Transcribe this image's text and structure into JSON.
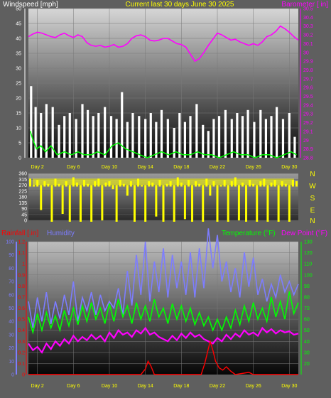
{
  "panel_top": {
    "title_left": "Windspeed [mph]",
    "title_center": "Current last 30 days June 30 2025",
    "title_right": "Barometer [ in]",
    "colors": {
      "title_left": "#ffffff",
      "title_center": "#ffff00",
      "title_right": "#ff00ff",
      "gust": "#ffffff",
      "wind": "#00ff00",
      "baro": "#ff00ff"
    }
  },
  "panel_mid": {
    "compass_labels": [
      "N",
      "W",
      "S",
      "E",
      "N"
    ],
    "color": "#ffff00"
  },
  "panel_bottom": {
    "title_rain": "Rainfall [.in]",
    "title_hum": "Humidity",
    "title_temp": "Temperature (°F)",
    "title_dew": "Dew Point (°F)",
    "colors": {
      "rain": "#ff0000",
      "hum": "#7d7dff",
      "temp": "#00ff00",
      "dew": "#ff00ff"
    }
  },
  "chart_data": [
    {
      "type": "line",
      "y_axis_left": {
        "label": "Windspeed [mph]",
        "range": [
          0,
          50
        ],
        "ticks": [
          "50",
          "45",
          "40",
          "35",
          "30",
          "25",
          "20",
          "15",
          "10",
          "5",
          "0"
        ]
      },
      "y_axis_right": {
        "label": "Barometer [ in]",
        "range": [
          28.8,
          30.5
        ],
        "ticks": [
          "30.5",
          "30.4",
          "30.3",
          "30.2",
          "30.1",
          "30",
          "29.9",
          "29.8",
          "29.7",
          "29.6",
          "29.5",
          "29.4",
          "29.3",
          "29.2",
          "29.1",
          "29",
          "28.9",
          "28.8"
        ]
      },
      "x_axis": {
        "range": [
          1,
          31
        ],
        "ticks": [
          "Day 2",
          "Day 6",
          "Day 10",
          "Day 14",
          "Day 18",
          "Day 22",
          "Day 26",
          "Day 30"
        ],
        "tick_days": [
          2,
          6,
          10,
          14,
          18,
          22,
          26,
          30
        ]
      },
      "series": [
        {
          "name": "gust",
          "axis": "left",
          "color": "#ffffff",
          "day": [
            1.3,
            1.8,
            2.4,
            3.0,
            3.7,
            4.4,
            5.0,
            5.6,
            6.3,
            7.0,
            7.6,
            8.2,
            8.8,
            9.5,
            10.2,
            10.8,
            11.4,
            12.0,
            12.6,
            13.3,
            14.0,
            14.6,
            15.2,
            15.8,
            16.5,
            17.2,
            17.8,
            18.4,
            19.0,
            19.7,
            20.4,
            21.0,
            21.6,
            22.2,
            22.9,
            23.6,
            24.2,
            24.8,
            25.4,
            26.1,
            26.8,
            27.4,
            28.0,
            28.6,
            29.3,
            30.0,
            30.6
          ],
          "mph": [
            24,
            17,
            15,
            18,
            17,
            11,
            14,
            15,
            13,
            18,
            16,
            14,
            15,
            17,
            14,
            13,
            22,
            12,
            15,
            14,
            13,
            15,
            12,
            16,
            13,
            10,
            15,
            12,
            14,
            18,
            11,
            9,
            13,
            14,
            16,
            13,
            15,
            14,
            16,
            12,
            16,
            13,
            14,
            17,
            13,
            15,
            7
          ]
        },
        {
          "name": "wind",
          "axis": "left",
          "color": "#00ff00",
          "day": [
            1.2,
            1.5,
            1.9,
            2.4,
            2.9,
            3.5,
            4.2,
            5.0,
            5.8,
            6.5,
            7.2,
            8.0,
            8.7,
            9.5,
            10.3,
            11.0,
            11.8,
            12.6,
            13.4,
            14.2,
            15.0,
            15.8,
            16.6,
            17.4,
            18.2,
            19.0,
            19.8,
            20.6,
            21.4,
            22.2,
            23.0,
            23.8,
            24.6,
            25.4,
            26.2,
            27.0,
            27.8,
            28.6,
            29.4,
            30.2,
            30.8
          ],
          "mph": [
            9,
            6,
            3,
            4,
            2,
            4,
            1,
            2,
            1,
            2,
            1,
            1,
            2,
            1,
            4,
            5,
            3,
            2,
            1,
            0,
            1,
            2,
            1,
            2,
            1,
            1,
            2,
            1,
            1,
            0,
            1,
            2,
            1,
            1,
            0,
            1,
            1,
            0,
            1,
            2,
            1
          ]
        },
        {
          "name": "barometer",
          "axis": "right",
          "color": "#ff00ff",
          "day": [
            1,
            1.5,
            2,
            2.5,
            3,
            3.5,
            4,
            4.5,
            5,
            5.5,
            6,
            6.5,
            7,
            7.5,
            8,
            8.5,
            9,
            9.5,
            10,
            10.5,
            11,
            11.5,
            12,
            12.5,
            13,
            13.5,
            14,
            14.5,
            15,
            15.5,
            16,
            16.5,
            17,
            17.5,
            18,
            18.5,
            19,
            19.5,
            20,
            20.5,
            21,
            21.5,
            22,
            22.5,
            23,
            23.5,
            24,
            24.5,
            25,
            25.5,
            26,
            26.5,
            27,
            27.5,
            28,
            28.5,
            29,
            29.5,
            30,
            30.5,
            31
          ],
          "inHg": [
            30.18,
            30.21,
            30.23,
            30.22,
            30.2,
            30.18,
            30.17,
            30.2,
            30.22,
            30.19,
            30.17,
            30.2,
            30.18,
            30.11,
            30.08,
            30.07,
            30.08,
            30.06,
            30.07,
            30.09,
            30.06,
            30.07,
            30.1,
            30.16,
            30.19,
            30.2,
            30.18,
            30.14,
            30.13,
            30.14,
            30.16,
            30.16,
            30.13,
            30.1,
            30.09,
            30.06,
            29.98,
            29.9,
            29.93,
            30.0,
            30.08,
            30.15,
            30.22,
            30.2,
            30.17,
            30.14,
            30.15,
            30.12,
            30.1,
            30.08,
            30.1,
            30.08,
            30.12,
            30.18,
            30.2,
            30.24,
            30.3,
            30.27,
            30.23,
            30.18,
            30.14
          ]
        }
      ]
    },
    {
      "type": "scatter",
      "y_axis_left": {
        "label": "Wind direction (degrees)",
        "range": [
          0,
          360
        ],
        "ticks": [
          "360",
          "315",
          "270",
          "225",
          "180",
          "135",
          "90",
          "45",
          "0"
        ]
      },
      "y_axis_right": {
        "labels": [
          "N",
          "W",
          "S",
          "E",
          "N"
        ]
      },
      "x_axis": {
        "range": [
          1,
          31
        ]
      },
      "series": [
        {
          "name": "wind direction",
          "color": "#ffff00",
          "day": [
            1.2,
            1.6,
            2.0,
            2.4,
            2.8,
            3.2,
            3.6,
            4.0,
            4.4,
            4.8,
            5.2,
            5.6,
            6.0,
            6.4,
            6.8,
            7.2,
            7.6,
            8.0,
            8.4,
            8.8,
            9.2,
            9.6,
            10.0,
            10.4,
            10.8,
            11.2,
            11.6,
            12.0,
            12.4,
            12.8,
            13.2,
            13.6,
            14.0,
            14.4,
            14.8,
            15.2,
            15.6,
            16.0,
            16.4,
            16.8,
            17.2,
            17.6,
            18.0,
            18.4,
            18.8,
            19.2,
            19.6,
            20.0,
            20.4,
            20.8,
            21.2,
            21.6,
            22.0,
            22.4,
            22.8,
            23.2,
            23.6,
            24.0,
            24.4,
            24.8,
            25.2,
            25.6,
            26.0,
            26.4,
            26.8,
            27.2,
            27.6,
            28.0,
            28.4,
            28.8,
            29.2,
            29.6,
            30.0,
            30.4,
            30.8
          ],
          "deg": [
            320,
            270,
            310,
            90,
            300,
            280,
            0,
            320,
            280,
            60,
            300,
            0,
            330,
            290,
            0,
            310,
            280,
            0,
            300,
            320,
            10,
            290,
            300,
            250,
            0,
            310,
            280,
            200,
            300,
            0,
            320,
            270,
            0,
            300,
            290,
            40,
            310,
            0,
            280,
            300,
            0,
            330,
            290,
            20,
            310,
            0,
            300,
            280,
            0,
            320,
            200,
            300,
            0,
            270,
            310,
            0,
            300,
            330,
            10,
            290,
            0,
            310,
            280,
            0,
            300,
            320,
            0,
            290,
            310,
            0,
            300,
            280,
            0,
            310,
            300
          ]
        }
      ]
    },
    {
      "type": "line",
      "y_axis_left_outer": {
        "label": "Humidity",
        "range": [
          0,
          100
        ],
        "ticks": [
          "100",
          "90",
          "80",
          "70",
          "60",
          "50",
          "40",
          "30",
          "20",
          "10",
          "0"
        ]
      },
      "y_axis_left_inner": {
        "label": "Rainfall [.in]",
        "range": [
          0,
          1.2
        ],
        "ticks": [
          "1.2",
          "1.1",
          "1",
          "0.9",
          "0.8",
          "0.7",
          "0.6",
          "0.5",
          "0.4",
          "0.3",
          "0.2",
          "0.1",
          "0"
        ]
      },
      "y_axis_right": {
        "label": "Temperature (°F)",
        "range": [
          10,
          130
        ],
        "ticks": [
          "130",
          "120",
          "110",
          "100",
          "90",
          "80",
          "70",
          "60",
          "50",
          "40",
          "30",
          "20"
        ]
      },
      "x_axis": {
        "range": [
          1,
          31
        ],
        "ticks": [
          "Day 2",
          "Day 6",
          "Day 10",
          "Day 14",
          "Day 18",
          "Day 22",
          "Day 26",
          "Day 30"
        ],
        "tick_days": [
          2,
          6,
          10,
          14,
          18,
          22,
          26,
          30
        ]
      },
      "series": [
        {
          "name": "Humidity",
          "axis": "left_outer",
          "color": "#7d7dff",
          "day": [
            1,
            1.5,
            2,
            2.5,
            3,
            3.5,
            4,
            4.5,
            5,
            5.5,
            6,
            6.5,
            7,
            7.5,
            8,
            8.5,
            9,
            9.5,
            10,
            10.5,
            11,
            11.5,
            12,
            12.5,
            13,
            13.5,
            14,
            14.5,
            15,
            15.5,
            16,
            16.5,
            17,
            17.5,
            18,
            18.5,
            19,
            19.5,
            20,
            20.5,
            21,
            21.5,
            22,
            22.5,
            23,
            23.5,
            24,
            24.5,
            25,
            25.5,
            26,
            26.5,
            27,
            27.5,
            28,
            28.5,
            29,
            29.5,
            30,
            30.5,
            31
          ],
          "pct": [
            55,
            35,
            58,
            40,
            62,
            38,
            55,
            42,
            60,
            45,
            70,
            40,
            58,
            48,
            62,
            45,
            60,
            48,
            55,
            50,
            65,
            45,
            78,
            52,
            90,
            60,
            100,
            55,
            85,
            62,
            95,
            58,
            90,
            65,
            85,
            60,
            92,
            58,
            95,
            65,
            110,
            80,
            105,
            70,
            85,
            62,
            80,
            58,
            92,
            66,
            88,
            60,
            72,
            55,
            68,
            58,
            75,
            62,
            70,
            60,
            68
          ]
        },
        {
          "name": "Temperature",
          "axis": "right",
          "color": "#00ff00",
          "day": [
            1,
            1.5,
            2,
            2.5,
            3,
            3.5,
            4,
            4.5,
            5,
            5.5,
            6,
            6.5,
            7,
            7.5,
            8,
            8.5,
            9,
            9.5,
            10,
            10.5,
            11,
            11.5,
            12,
            12.5,
            13,
            13.5,
            14,
            14.5,
            15,
            15.5,
            16,
            16.5,
            17,
            17.5,
            18,
            18.5,
            19,
            19.5,
            20,
            20.5,
            21,
            21.5,
            22,
            22.5,
            23,
            23.5,
            24,
            24.5,
            25,
            25.5,
            26,
            26.5,
            27,
            27.5,
            28,
            28.5,
            29,
            29.5,
            30,
            30.5,
            31
          ],
          "degF": [
            62,
            48,
            65,
            50,
            66,
            52,
            63,
            50,
            68,
            54,
            70,
            55,
            72,
            58,
            75,
            60,
            70,
            56,
            74,
            58,
            78,
            62,
            72,
            56,
            75,
            60,
            72,
            58,
            78,
            62,
            70,
            56,
            74,
            60,
            72,
            58,
            70,
            55,
            66,
            54,
            62,
            50,
            60,
            50,
            62,
            52,
            68,
            55,
            72,
            58,
            75,
            60,
            70,
            58,
            80,
            62,
            76,
            60,
            85,
            65,
            75
          ]
        },
        {
          "name": "Dew Point",
          "axis": "right",
          "color": "#ff00ff",
          "day": [
            1,
            1.5,
            2,
            2.5,
            3,
            3.5,
            4,
            4.5,
            5,
            5.5,
            6,
            6.5,
            7,
            7.5,
            8,
            8.5,
            9,
            9.5,
            10,
            10.5,
            11,
            11.5,
            12,
            12.5,
            13,
            13.5,
            14,
            14.5,
            15,
            15.5,
            16,
            16.5,
            17,
            17.5,
            18,
            18.5,
            19,
            19.5,
            20,
            20.5,
            21,
            21.5,
            22,
            22.5,
            23,
            23.5,
            24,
            24.5,
            25,
            25.5,
            26,
            26.5,
            27,
            27.5,
            28,
            28.5,
            29,
            29.5,
            30,
            30.5,
            31
          ],
          "degF": [
            38,
            32,
            35,
            30,
            38,
            33,
            40,
            36,
            42,
            38,
            45,
            40,
            44,
            41,
            46,
            42,
            45,
            40,
            48,
            43,
            50,
            46,
            48,
            44,
            50,
            47,
            52,
            46,
            48,
            44,
            42,
            40,
            45,
            41,
            47,
            43,
            48,
            44,
            46,
            42,
            40,
            38,
            43,
            40,
            46,
            42,
            47,
            44,
            50,
            46,
            48,
            45,
            52,
            48,
            51,
            47,
            50,
            48,
            49,
            46,
            47
          ]
        },
        {
          "name": "Rainfall",
          "axis": "left_inner",
          "color": "#ff0000",
          "day": [
            1,
            13.5,
            14.0,
            14.3,
            14.6,
            15.0,
            15.2,
            20.2,
            20.6,
            20.9,
            21.2,
            21.5,
            21.8,
            22.2,
            22.6,
            23.0,
            23.5,
            24.0,
            25.5,
            26.0,
            27.0,
            31
          ],
          "in": [
            0,
            0,
            0.05,
            0.12,
            0.08,
            0,
            0,
            0,
            0.1,
            0.2,
            0.3,
            0.22,
            0.12,
            0.06,
            0.04,
            0.07,
            0.03,
            0,
            0.02,
            0,
            0,
            0
          ]
        }
      ]
    }
  ]
}
